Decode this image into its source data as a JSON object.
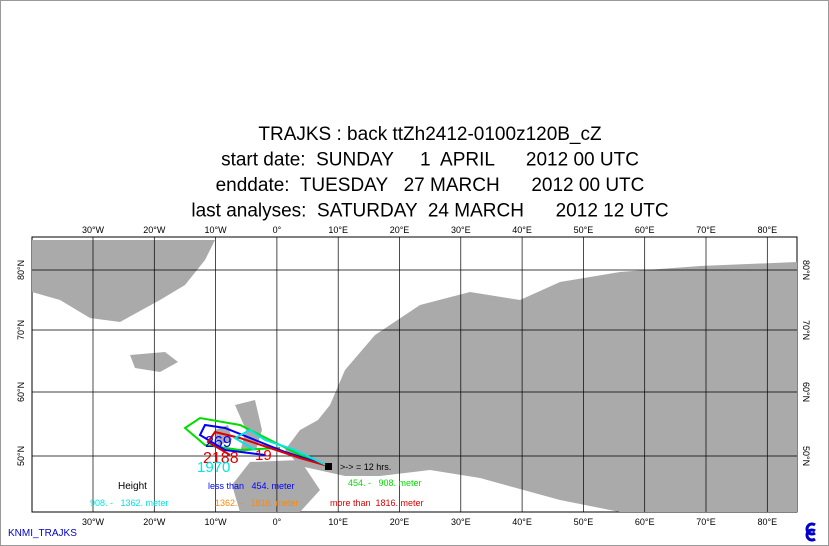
{
  "title_lines": [
    "TRAJKS : back ttZh2412-0100z120B_cZ",
    "start date:  SUNDAY     1  APRIL      2012 00 UTC",
    "enddate:  TUESDAY   27 MARCH      2012 00 UTC",
    "last analyses:  SATURDAY  24 MARCH      2012 12 UTC"
  ],
  "lon_labels": [
    "30°W",
    "20°W",
    "10°W",
    "0°",
    "10°E",
    "20°E",
    "30°E",
    "40°E",
    "50°E",
    "60°E",
    "70°E",
    "80°E"
  ],
  "lat_labels": [
    "80°N",
    "70°N",
    "60°N",
    "50°N"
  ],
  "legend": {
    "title": "Height",
    "arrow_note": ">-> = 12 hrs.",
    "items": [
      {
        "label": "less than   454. meter",
        "color": "#0000ff"
      },
      {
        "label": "454. -   908. meter",
        "color": "#00dd00"
      },
      {
        "label": "908. -   1362. meter",
        "color": "#00e5e5"
      },
      {
        "label": "1362. -   1816. meter",
        "color": "#ff8800"
      },
      {
        "label": "more than  1816. meter",
        "color": "#dd0000"
      }
    ]
  },
  "trajectory_labels": [
    {
      "text": "269",
      "color": "#0000ff"
    },
    {
      "text": "2188",
      "color": "#dd0000"
    },
    {
      "text": "1970",
      "color": "#00e5e5"
    },
    {
      "text": "19",
      "color": "#dd0000"
    }
  ],
  "footer": "KNMI_TRAJKS"
}
